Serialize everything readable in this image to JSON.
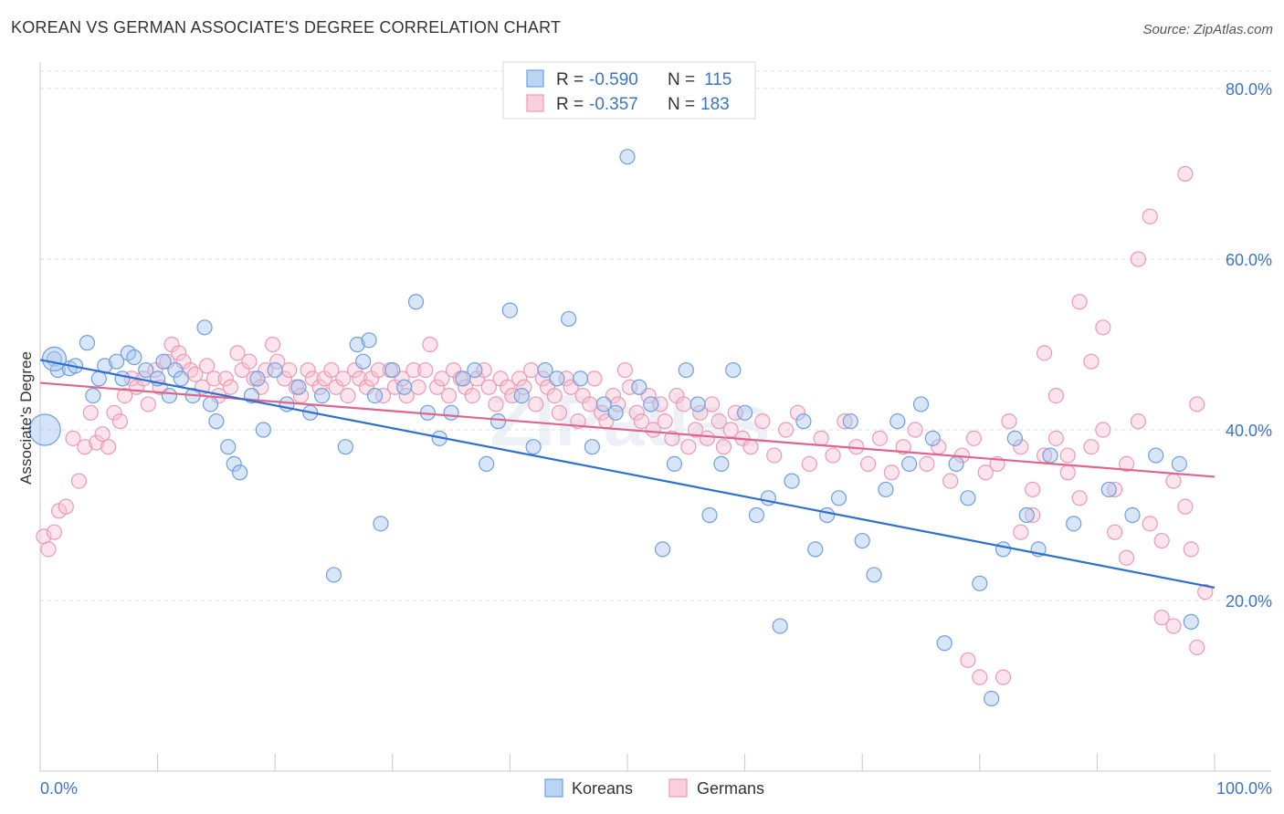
{
  "header": {
    "title": "KOREAN VS GERMAN ASSOCIATE'S DEGREE CORRELATION CHART",
    "source": "Source: ZipAtlas.com"
  },
  "colors": {
    "korean_fill": "#a9c8f0",
    "korean_stroke": "#6f9fe0",
    "korean_line": "#2f6fd0",
    "german_fill": "#f7c3d2",
    "german_stroke": "#ec9ab3",
    "german_line": "#e0648d",
    "tick_text": "#3d74c6"
  },
  "watermark": "ZIPatlas",
  "stats": {
    "korean": {
      "r_label": "R =",
      "r": "-0.590",
      "n_label": "N =",
      "n": "115"
    },
    "german": {
      "r_label": "R =",
      "r": "-0.357",
      "n_label": "N =",
      "n": "183"
    }
  },
  "chart_data": {
    "type": "scatter",
    "title": "KOREAN VS GERMAN ASSOCIATE'S DEGREE CORRELATION CHART",
    "xlabel": "",
    "ylabel": "Associate's Degree",
    "xlim": [
      0,
      100
    ],
    "ylim": [
      0,
      85
    ],
    "x_tick_labels": [
      "0.0%",
      "100.0%"
    ],
    "y_ticks": [
      20,
      40,
      60,
      80
    ],
    "y_tick_labels": [
      "20.0%",
      "40.0%",
      "60.0%",
      "80.0%"
    ],
    "grid": true,
    "legend_position": "top-center",
    "bottom_legend": [
      "Koreans",
      "Germans"
    ],
    "series": [
      {
        "name": "Koreans",
        "trend": {
          "x": [
            0,
            100
          ],
          "y": [
            48.2,
            21.5
          ]
        },
        "points": [
          [
            1.2,
            48.3
          ],
          [
            1.5,
            47
          ],
          [
            2.5,
            47.2
          ],
          [
            3,
            47.5
          ],
          [
            4,
            50.2
          ],
          [
            4.5,
            44
          ],
          [
            5,
            46
          ],
          [
            5.5,
            47.5
          ],
          [
            6.5,
            48
          ],
          [
            7,
            46
          ],
          [
            7.5,
            49
          ],
          [
            8,
            48.5
          ],
          [
            9,
            47
          ],
          [
            10,
            46
          ],
          [
            10.5,
            48
          ],
          [
            11,
            44
          ],
          [
            11.5,
            47
          ],
          [
            12,
            46
          ],
          [
            13,
            44
          ],
          [
            14,
            52
          ],
          [
            14.5,
            43
          ],
          [
            15,
            41
          ],
          [
            16,
            38
          ],
          [
            16.5,
            36
          ],
          [
            17,
            35
          ],
          [
            18,
            44
          ],
          [
            18.5,
            46
          ],
          [
            19,
            40
          ],
          [
            20,
            47
          ],
          [
            21,
            43
          ],
          [
            22,
            45
          ],
          [
            23,
            42
          ],
          [
            24,
            44
          ],
          [
            25,
            23
          ],
          [
            26,
            38
          ],
          [
            27,
            50
          ],
          [
            27.5,
            48
          ],
          [
            28,
            50.5
          ],
          [
            28.5,
            44
          ],
          [
            29,
            29
          ],
          [
            30,
            47
          ],
          [
            31,
            45
          ],
          [
            32,
            55
          ],
          [
            33,
            42
          ],
          [
            34,
            39
          ],
          [
            35,
            42
          ],
          [
            36,
            46
          ],
          [
            37,
            47
          ],
          [
            38,
            36
          ],
          [
            39,
            41
          ],
          [
            40,
            54
          ],
          [
            41,
            44
          ],
          [
            42,
            38
          ],
          [
            43,
            47
          ],
          [
            44,
            46
          ],
          [
            45,
            53
          ],
          [
            46,
            46
          ],
          [
            47,
            38
          ],
          [
            48,
            43
          ],
          [
            49,
            42
          ],
          [
            50,
            72
          ],
          [
            51,
            45
          ],
          [
            52,
            43
          ],
          [
            53,
            26
          ],
          [
            54,
            36
          ],
          [
            55,
            47
          ],
          [
            56,
            43
          ],
          [
            57,
            30
          ],
          [
            58,
            36
          ],
          [
            59,
            47
          ],
          [
            60,
            42
          ],
          [
            61,
            30
          ],
          [
            62,
            32
          ],
          [
            63,
            17
          ],
          [
            64,
            34
          ],
          [
            65,
            41
          ],
          [
            66,
            26
          ],
          [
            67,
            30
          ],
          [
            68,
            32
          ],
          [
            69,
            41
          ],
          [
            70,
            27
          ],
          [
            71,
            23
          ],
          [
            72,
            33
          ],
          [
            73,
            41
          ],
          [
            74,
            36
          ],
          [
            75,
            43
          ],
          [
            76,
            39
          ],
          [
            77,
            15
          ],
          [
            78,
            36
          ],
          [
            79,
            32
          ],
          [
            80,
            22
          ],
          [
            81,
            8.5
          ],
          [
            82,
            26
          ],
          [
            83,
            39
          ],
          [
            84,
            30
          ],
          [
            85,
            26
          ],
          [
            86,
            37
          ],
          [
            88,
            29
          ],
          [
            91,
            33
          ],
          [
            93,
            30
          ],
          [
            95,
            37
          ],
          [
            97,
            36
          ],
          [
            98,
            17.5
          ]
        ]
      },
      {
        "name": "Germans",
        "trend": {
          "x": [
            0,
            100
          ],
          "y": [
            45.5,
            34.5
          ]
        },
        "points": [
          [
            0.3,
            27.5
          ],
          [
            0.7,
            26
          ],
          [
            1.2,
            28
          ],
          [
            1.6,
            30.5
          ],
          [
            2.2,
            31
          ],
          [
            2.8,
            39
          ],
          [
            3.3,
            34
          ],
          [
            3.8,
            38
          ],
          [
            4.3,
            42
          ],
          [
            4.8,
            38.5
          ],
          [
            5.3,
            39.5
          ],
          [
            5.8,
            38
          ],
          [
            6.3,
            42
          ],
          [
            6.8,
            41
          ],
          [
            7.2,
            44
          ],
          [
            7.8,
            46
          ],
          [
            8.2,
            45
          ],
          [
            8.8,
            46
          ],
          [
            9.2,
            43
          ],
          [
            9.8,
            47
          ],
          [
            10.2,
            45
          ],
          [
            10.8,
            48
          ],
          [
            11.2,
            50
          ],
          [
            11.8,
            49
          ],
          [
            12.2,
            48
          ],
          [
            12.8,
            47
          ],
          [
            13.2,
            46.5
          ],
          [
            13.8,
            45
          ],
          [
            14.2,
            47.5
          ],
          [
            14.8,
            46
          ],
          [
            15.2,
            44
          ],
          [
            15.8,
            46
          ],
          [
            16.2,
            45
          ],
          [
            16.8,
            49
          ],
          [
            17.2,
            47
          ],
          [
            17.8,
            48
          ],
          [
            18.2,
            46
          ],
          [
            18.8,
            45
          ],
          [
            19.2,
            47
          ],
          [
            19.8,
            50
          ],
          [
            20.2,
            48
          ],
          [
            20.8,
            46
          ],
          [
            21.2,
            47
          ],
          [
            21.8,
            45
          ],
          [
            22.2,
            44
          ],
          [
            22.8,
            47
          ],
          [
            23.2,
            46
          ],
          [
            23.8,
            45
          ],
          [
            24.2,
            46
          ],
          [
            24.8,
            47
          ],
          [
            25.2,
            45
          ],
          [
            25.8,
            46
          ],
          [
            26.2,
            44
          ],
          [
            26.8,
            47
          ],
          [
            27.2,
            46
          ],
          [
            27.8,
            45
          ],
          [
            28.2,
            46
          ],
          [
            28.8,
            47
          ],
          [
            29.2,
            44
          ],
          [
            29.8,
            47
          ],
          [
            30.2,
            45
          ],
          [
            30.8,
            46
          ],
          [
            31.2,
            44
          ],
          [
            31.8,
            47
          ],
          [
            32.2,
            45
          ],
          [
            32.8,
            47
          ],
          [
            33.2,
            50
          ],
          [
            33.8,
            45
          ],
          [
            34.2,
            46
          ],
          [
            34.8,
            44
          ],
          [
            35.2,
            47
          ],
          [
            35.8,
            46
          ],
          [
            36.2,
            45
          ],
          [
            36.8,
            44
          ],
          [
            37.2,
            46
          ],
          [
            37.8,
            47
          ],
          [
            38.2,
            45
          ],
          [
            38.8,
            43
          ],
          [
            39.2,
            46
          ],
          [
            39.8,
            45
          ],
          [
            40.2,
            44
          ],
          [
            40.8,
            46
          ],
          [
            41.2,
            45
          ],
          [
            41.8,
            47
          ],
          [
            42.2,
            43
          ],
          [
            42.8,
            46
          ],
          [
            43.2,
            45
          ],
          [
            43.8,
            44
          ],
          [
            44.2,
            42
          ],
          [
            44.8,
            46
          ],
          [
            45.2,
            45
          ],
          [
            45.8,
            41
          ],
          [
            46.2,
            44
          ],
          [
            46.8,
            43
          ],
          [
            47.2,
            46
          ],
          [
            47.8,
            42
          ],
          [
            48.2,
            41
          ],
          [
            48.8,
            44
          ],
          [
            49.2,
            43
          ],
          [
            49.8,
            47
          ],
          [
            50.2,
            45
          ],
          [
            50.8,
            42
          ],
          [
            51.2,
            41
          ],
          [
            51.8,
            44
          ],
          [
            52.2,
            40
          ],
          [
            52.8,
            43
          ],
          [
            53.2,
            41
          ],
          [
            53.8,
            39
          ],
          [
            54.2,
            44
          ],
          [
            54.8,
            43
          ],
          [
            55.2,
            38
          ],
          [
            55.8,
            40
          ],
          [
            56.2,
            42
          ],
          [
            56.8,
            39
          ],
          [
            57.2,
            43
          ],
          [
            57.8,
            41
          ],
          [
            58.2,
            38
          ],
          [
            58.8,
            40
          ],
          [
            59.2,
            42
          ],
          [
            59.8,
            39
          ],
          [
            60.5,
            38
          ],
          [
            61.5,
            41
          ],
          [
            62.5,
            37
          ],
          [
            63.5,
            40
          ],
          [
            64.5,
            42
          ],
          [
            65.5,
            36
          ],
          [
            66.5,
            39
          ],
          [
            67.5,
            37
          ],
          [
            68.5,
            41
          ],
          [
            69.5,
            38
          ],
          [
            70.5,
            36
          ],
          [
            71.5,
            39
          ],
          [
            72.5,
            35
          ],
          [
            73.5,
            38
          ],
          [
            74.5,
            40
          ],
          [
            75.5,
            36
          ],
          [
            76.5,
            38
          ],
          [
            77.5,
            34
          ],
          [
            78.5,
            37
          ],
          [
            79.5,
            39
          ],
          [
            80.5,
            35
          ],
          [
            81.5,
            36
          ],
          [
            82.5,
            41
          ],
          [
            83.5,
            38
          ],
          [
            84.5,
            33
          ],
          [
            85.5,
            37
          ],
          [
            86.5,
            39
          ],
          [
            87.5,
            35
          ],
          [
            88.5,
            32
          ],
          [
            89.5,
            38
          ],
          [
            90.5,
            40
          ],
          [
            91.5,
            33
          ],
          [
            92.5,
            36
          ],
          [
            93.5,
            41
          ],
          [
            94.5,
            29
          ],
          [
            95.5,
            27
          ],
          [
            96.5,
            34
          ],
          [
            97.5,
            31
          ],
          [
            98,
            26
          ],
          [
            98.5,
            43
          ],
          [
            79,
            13
          ],
          [
            80,
            11
          ],
          [
            82,
            11
          ],
          [
            83.5,
            28
          ],
          [
            84.5,
            30
          ],
          [
            85.5,
            49
          ],
          [
            86.5,
            44
          ],
          [
            87.5,
            37
          ],
          [
            88.5,
            55
          ],
          [
            89.5,
            48
          ],
          [
            90.5,
            52
          ],
          [
            91.5,
            28
          ],
          [
            92.5,
            25
          ],
          [
            93.5,
            60
          ],
          [
            94.5,
            65
          ],
          [
            95.5,
            18
          ],
          [
            96.5,
            17
          ],
          [
            97.5,
            70
          ],
          [
            98.5,
            14.5
          ],
          [
            99.2,
            21
          ]
        ]
      }
    ]
  }
}
